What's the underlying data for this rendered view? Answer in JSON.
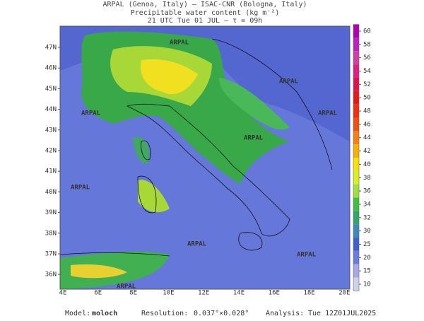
{
  "header": {
    "line1": "ARPAL (Genoa, Italy)  —  ISAC-CNR (Bologna, Italy)",
    "line2": "Precipitable water content (kg m⁻²)",
    "line3": "21 UTC Tue 01 JUL  —  τ = 09h"
  },
  "map": {
    "lat_labels": [
      "47N",
      "46N",
      "45N",
      "44N",
      "43N",
      "42N",
      "41N",
      "40N",
      "39N",
      "38N",
      "37N",
      "36N"
    ],
    "lon_labels": [
      "4E",
      "6E",
      "8E",
      "10E",
      "12E",
      "14E",
      "16E",
      "18E",
      "20E"
    ],
    "watermark": "ARPAL"
  },
  "colorbar": {
    "ticks": [
      60,
      58,
      56,
      54,
      52,
      50,
      48,
      46,
      44,
      42,
      40,
      38,
      36,
      34,
      32,
      30,
      25,
      20,
      15,
      10
    ],
    "colors": [
      "#b000b0",
      "#c020c0",
      "#d040a0",
      "#e02080",
      "#e01050",
      "#e81818",
      "#f03010",
      "#f05010",
      "#f88010",
      "#f8b000",
      "#f8e000",
      "#d8f020",
      "#a0e040",
      "#40c040",
      "#30a868",
      "#3a8ab8",
      "#4060d0",
      "#6a7ce0",
      "#a8a8e8",
      "#d0d0e8"
    ]
  },
  "footer": {
    "model_label": "Model:",
    "model": "moloch",
    "resolution_label": "Resolution:",
    "resolution": "0.037°×0.028°",
    "analysis_label": "Analysis:",
    "analysis": "Tue 12Z01JUL2025"
  }
}
